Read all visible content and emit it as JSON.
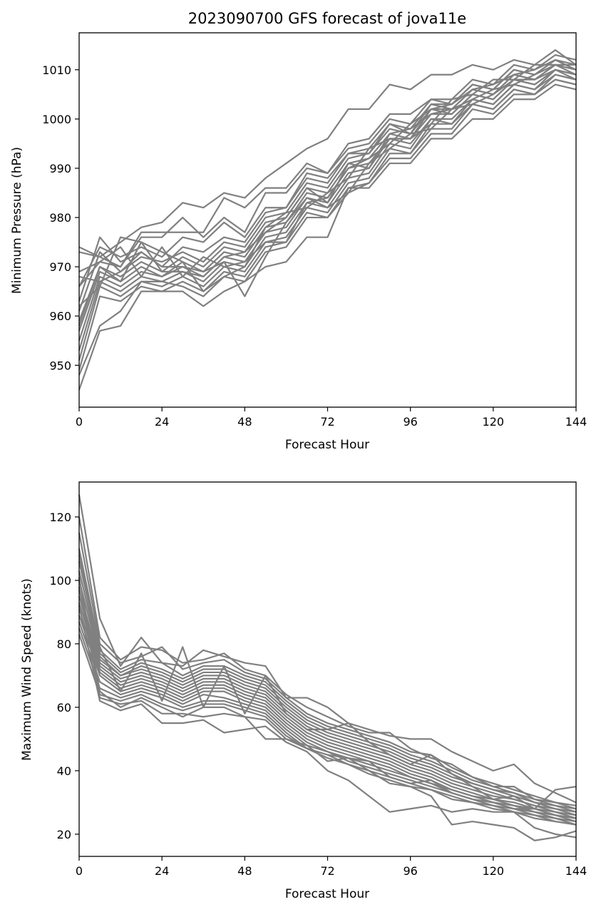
{
  "chart_data": [
    {
      "type": "line",
      "title": "2023090700 GFS forecast of jova11e",
      "xlabel": "Forecast Hour",
      "ylabel": "Minimum Pressure (hPa)",
      "xlim": [
        0,
        144
      ],
      "ylim": [
        941.5,
        1017.5
      ],
      "xticks": [
        0,
        24,
        48,
        72,
        96,
        120,
        144
      ],
      "yticks": [
        950,
        960,
        970,
        980,
        990,
        1000,
        1010
      ],
      "line_color": "#808080",
      "x": [
        0,
        6,
        12,
        18,
        24,
        30,
        36,
        42,
        48,
        54,
        60,
        66,
        72,
        78,
        84,
        90,
        96,
        102,
        108,
        114,
        120,
        126,
        132,
        138,
        144
      ],
      "series": [
        {
          "values": [
            974,
            972,
            975,
            978,
            979,
            983,
            982,
            985,
            984,
            988,
            991,
            994,
            996,
            1002,
            1002,
            1007,
            1006,
            1009,
            1009,
            1011,
            1010,
            1012,
            1011,
            1014,
            1011
          ]
        },
        {
          "values": [
            973,
            972,
            970,
            977,
            977,
            977,
            977,
            984,
            982,
            986,
            986,
            991,
            989,
            995,
            996,
            1001,
            1001,
            1004,
            1004,
            1008,
            1007,
            1011,
            1010,
            1013,
            1012
          ]
        },
        {
          "values": [
            969,
            971,
            970,
            976,
            976,
            980,
            976,
            980,
            977,
            985,
            985,
            990,
            989,
            994,
            995,
            1000,
            999,
            1004,
            1003,
            1007,
            1006,
            1010,
            1009,
            1012,
            1011
          ]
        },
        {
          "values": [
            966,
            974,
            972,
            974,
            972,
            976,
            975,
            979,
            976,
            982,
            982,
            989,
            988,
            993,
            994,
            999,
            998,
            1003,
            1003,
            1007,
            1006,
            1010,
            1009,
            1012,
            1010
          ]
        },
        {
          "values": [
            963,
            976,
            971,
            973,
            970,
            974,
            973,
            976,
            975,
            981,
            982,
            988,
            987,
            993,
            993,
            999,
            997,
            1003,
            1002,
            1006,
            1005,
            1009,
            1008,
            1011,
            1010
          ]
        },
        {
          "values": [
            961,
            973,
            969,
            972,
            971,
            973,
            971,
            975,
            974,
            980,
            981,
            987,
            986,
            992,
            993,
            998,
            997,
            1002,
            1002,
            1006,
            1005,
            1009,
            1008,
            1011,
            1009
          ]
        },
        {
          "values": [
            959,
            970,
            968,
            971,
            969,
            972,
            970,
            974,
            973,
            979,
            980,
            986,
            985,
            991,
            992,
            997,
            996,
            1002,
            1001,
            1005,
            1004,
            1008,
            1007,
            1010,
            1009
          ]
        },
        {
          "values": [
            957,
            969,
            967,
            970,
            968,
            971,
            969,
            973,
            972,
            978,
            979,
            985,
            984,
            990,
            991,
            996,
            996,
            1001,
            1001,
            1005,
            1004,
            1008,
            1007,
            1010,
            1009
          ]
        },
        {
          "values": [
            955,
            968,
            966,
            969,
            968,
            970,
            968,
            972,
            971,
            977,
            978,
            984,
            983,
            989,
            990,
            996,
            995,
            1000,
            1000,
            1004,
            1003,
            1007,
            1006,
            1010,
            1008
          ]
        },
        {
          "values": [
            953,
            967,
            965,
            968,
            967,
            969,
            967,
            971,
            970,
            976,
            977,
            983,
            982,
            988,
            989,
            995,
            994,
            1000,
            999,
            1004,
            1003,
            1007,
            1006,
            1009,
            1008
          ]
        },
        {
          "values": [
            951,
            966,
            964,
            967,
            966,
            968,
            966,
            970,
            969,
            975,
            976,
            982,
            981,
            987,
            988,
            994,
            993,
            999,
            999,
            1003,
            1002,
            1006,
            1005,
            1009,
            1008
          ]
        },
        {
          "values": [
            949,
            964,
            963,
            966,
            965,
            967,
            965,
            969,
            968,
            974,
            975,
            981,
            980,
            986,
            987,
            993,
            993,
            998,
            998,
            1003,
            1002,
            1006,
            1005,
            1008,
            1007
          ]
        },
        {
          "values": [
            948,
            958,
            961,
            967,
            967,
            966,
            964,
            968,
            967,
            973,
            974,
            980,
            980,
            985,
            987,
            992,
            992,
            997,
            997,
            1002,
            1001,
            1005,
            1005,
            1008,
            1007
          ]
        },
        {
          "values": [
            945,
            957,
            958,
            965,
            965,
            965,
            962,
            965,
            967,
            970,
            971,
            976,
            976,
            986,
            986,
            991,
            991,
            996,
            996,
            1000,
            1000,
            1004,
            1004,
            1007,
            1006
          ]
        },
        {
          "values": [
            968,
            967,
            969,
            973,
            970,
            970,
            969,
            971,
            964,
            972,
            979,
            984,
            982,
            985,
            991,
            994,
            997,
            998,
            1002,
            1004,
            1006,
            1007,
            1009,
            1011,
            1010
          ]
        },
        {
          "values": [
            966,
            971,
            974,
            968,
            974,
            968,
            972,
            970,
            971,
            975,
            975,
            983,
            984,
            990,
            992,
            995,
            999,
            1002,
            1003,
            1006,
            1007,
            1009,
            1010,
            1012,
            1010
          ]
        },
        {
          "values": [
            962,
            966,
            976,
            975,
            973,
            971,
            965,
            968,
            970,
            978,
            981,
            982,
            985,
            988,
            994,
            996,
            996,
            999,
            1004,
            1005,
            1008,
            1008,
            1011,
            1011,
            1011
          ]
        },
        {
          "values": [
            958,
            970,
            967,
            975,
            969,
            969,
            968,
            972,
            973,
            977,
            980,
            986,
            983,
            991,
            990,
            997,
            998,
            1001,
            1002,
            1003,
            1005,
            1008,
            1008,
            1010,
            1009
          ]
        }
      ]
    },
    {
      "type": "line",
      "xlabel": "Forecast Hour",
      "ylabel": "Maximum Wind Speed (knots)",
      "xlim": [
        0,
        144
      ],
      "ylim": [
        13,
        131
      ],
      "xticks": [
        0,
        24,
        48,
        72,
        96,
        120,
        144
      ],
      "yticks": [
        20,
        40,
        60,
        80,
        100,
        120
      ],
      "line_color": "#808080",
      "x": [
        0,
        6,
        12,
        18,
        24,
        30,
        36,
        42,
        48,
        54,
        60,
        66,
        72,
        78,
        84,
        90,
        96,
        102,
        108,
        114,
        120,
        126,
        132,
        138,
        144
      ],
      "series": [
        {
          "values": [
            127,
            88,
            73,
            82,
            74,
            73,
            78,
            76,
            74,
            73,
            63,
            63,
            60,
            55,
            53,
            51,
            50,
            50,
            46,
            43,
            40,
            42,
            36,
            33,
            30
          ]
        },
        {
          "values": [
            120,
            82,
            75,
            79,
            78,
            74,
            75,
            77,
            72,
            70,
            64,
            60,
            57,
            54,
            52,
            52,
            47,
            44,
            42,
            38,
            36,
            34,
            32,
            30,
            29
          ]
        },
        {
          "values": [
            115,
            80,
            74,
            76,
            79,
            72,
            74,
            75,
            71,
            69,
            63,
            58,
            55,
            53,
            51,
            49,
            46,
            45,
            41,
            38,
            35,
            35,
            31,
            30,
            28
          ]
        },
        {
          "values": [
            110,
            78,
            72,
            75,
            74,
            70,
            73,
            73,
            70,
            68,
            62,
            57,
            54,
            52,
            50,
            48,
            45,
            43,
            40,
            37,
            35,
            33,
            31,
            29,
            28
          ]
        },
        {
          "values": [
            106,
            77,
            71,
            74,
            72,
            69,
            72,
            72,
            69,
            67,
            61,
            56,
            53,
            51,
            49,
            47,
            44,
            42,
            39,
            36,
            34,
            33,
            30,
            29,
            27
          ]
        },
        {
          "values": [
            103,
            76,
            70,
            73,
            71,
            68,
            71,
            71,
            68,
            66,
            60,
            55,
            52,
            50,
            48,
            46,
            43,
            41,
            38,
            36,
            34,
            32,
            30,
            28,
            27
          ]
        },
        {
          "values": [
            100,
            75,
            70,
            72,
            70,
            67,
            70,
            70,
            67,
            65,
            59,
            54,
            51,
            49,
            47,
            45,
            42,
            40,
            37,
            35,
            33,
            31,
            29,
            28,
            26
          ]
        },
        {
          "values": [
            97,
            74,
            69,
            71,
            69,
            66,
            69,
            69,
            66,
            64,
            58,
            53,
            50,
            48,
            46,
            44,
            41,
            39,
            36,
            34,
            32,
            31,
            29,
            27,
            26
          ]
        },
        {
          "values": [
            95,
            73,
            68,
            70,
            68,
            65,
            68,
            68,
            65,
            63,
            57,
            52,
            49,
            47,
            45,
            43,
            40,
            38,
            35,
            33,
            31,
            30,
            28,
            27,
            25
          ]
        },
        {
          "values": [
            93,
            72,
            67,
            69,
            67,
            64,
            67,
            67,
            64,
            62,
            56,
            51,
            48,
            46,
            44,
            42,
            39,
            37,
            34,
            32,
            31,
            29,
            28,
            26,
            25
          ]
        },
        {
          "values": [
            91,
            71,
            66,
            68,
            66,
            63,
            66,
            66,
            63,
            61,
            55,
            50,
            47,
            45,
            43,
            41,
            38,
            36,
            34,
            32,
            30,
            29,
            27,
            26,
            24
          ]
        },
        {
          "values": [
            89,
            70,
            65,
            67,
            65,
            62,
            65,
            65,
            62,
            60,
            54,
            49,
            46,
            44,
            42,
            40,
            38,
            36,
            33,
            31,
            30,
            28,
            27,
            25,
            24
          ]
        },
        {
          "values": [
            87,
            68,
            64,
            66,
            64,
            61,
            64,
            63,
            61,
            59,
            53,
            48,
            46,
            43,
            41,
            39,
            37,
            35,
            33,
            31,
            29,
            28,
            26,
            25,
            23
          ]
        },
        {
          "values": [
            85,
            66,
            63,
            65,
            63,
            60,
            62,
            62,
            60,
            58,
            52,
            47,
            45,
            42,
            40,
            38,
            36,
            34,
            32,
            30,
            29,
            27,
            26,
            24,
            23
          ]
        },
        {
          "values": [
            83,
            64,
            62,
            64,
            61,
            59,
            61,
            61,
            59,
            57,
            51,
            47,
            44,
            42,
            39,
            37,
            35,
            34,
            31,
            30,
            28,
            27,
            25,
            24,
            23
          ]
        },
        {
          "values": [
            98,
            63,
            61,
            62,
            58,
            58,
            57,
            58,
            57,
            56,
            50,
            48,
            43,
            44,
            43,
            38,
            36,
            37,
            33,
            31,
            30,
            28,
            28,
            26,
            25
          ]
        },
        {
          "values": [
            92,
            62,
            59,
            61,
            55,
            55,
            56,
            52,
            53,
            54,
            49,
            46,
            40,
            37,
            32,
            27,
            28,
            29,
            27,
            28,
            27,
            27,
            22,
            20,
            19
          ]
        },
        {
          "values": [
            101,
            65,
            60,
            63,
            60,
            57,
            60,
            60,
            57,
            50,
            50,
            47,
            45,
            44,
            40,
            36,
            35,
            32,
            23,
            24,
            23,
            22,
            18,
            19,
            21
          ]
        },
        {
          "values": [
            108,
            79,
            65,
            77,
            62,
            79,
            60,
            73,
            58,
            70,
            58,
            53,
            53,
            55,
            49,
            45,
            42,
            45,
            39,
            35,
            31,
            32,
            28,
            34,
            35
          ]
        }
      ]
    }
  ]
}
